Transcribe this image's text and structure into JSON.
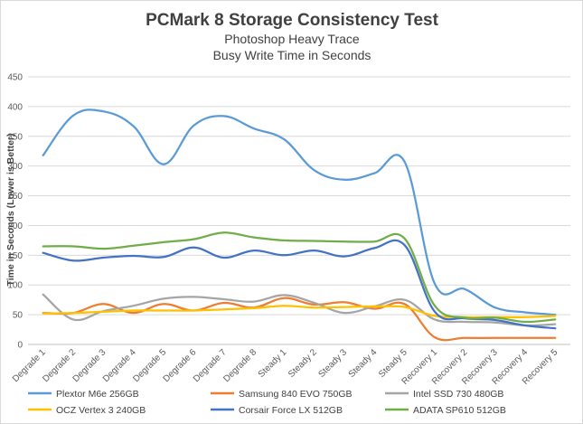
{
  "chart_data": {
    "type": "line",
    "title": "PCMark 8 Storage Consistency Test",
    "subtitle_lines": [
      "Photoshop Heavy Trace",
      "Busy Write Time in Seconds"
    ],
    "xlabel": "",
    "ylabel": "Time in Seconds (Lower is Better)",
    "ylim": [
      0,
      450
    ],
    "yticks": [
      0,
      50,
      100,
      150,
      200,
      250,
      300,
      350,
      400,
      450
    ],
    "grid": true,
    "legend_position": "bottom",
    "categories": [
      "Degrade 1",
      "Degrade 2",
      "Degrade 3",
      "Degrade 4",
      "Degrade 5",
      "Degrade 6",
      "Degrade 7",
      "Degrade 8",
      "Steady 1",
      "Steady 2",
      "Steady 3",
      "Steady 4",
      "Steady 5",
      "Recovery 1",
      "Recovery 2",
      "Recovery 3",
      "Recovery 4",
      "Recovery 5"
    ],
    "series": [
      {
        "name": "Plextor M6e 256GB",
        "color": "#5b9bd5",
        "values": [
          318,
          385,
          392,
          367,
          303,
          368,
          384,
          363,
          345,
          293,
          277,
          288,
          307,
          102,
          93,
          62,
          54,
          50
        ]
      },
      {
        "name": "Samsung 840 EVO 750GB",
        "color": "#ed7d31",
        "values": [
          53,
          53,
          68,
          53,
          68,
          57,
          70,
          62,
          78,
          67,
          71,
          60,
          68,
          12,
          11,
          11,
          11,
          11
        ]
      },
      {
        "name": "Intel SSD 730 480GB",
        "color": "#a5a5a5",
        "values": [
          84,
          42,
          56,
          65,
          77,
          80,
          76,
          72,
          83,
          70,
          53,
          64,
          75,
          42,
          38,
          37,
          32,
          34
        ]
      },
      {
        "name": "OCZ Vertex 3 240GB",
        "color": "#ffc000",
        "values": [
          52,
          53,
          55,
          57,
          57,
          57,
          59,
          61,
          65,
          62,
          63,
          64,
          63,
          48,
          46,
          46,
          46,
          48
        ]
      },
      {
        "name": "Corsair Force LX 512GB",
        "color": "#4472c4",
        "values": [
          154,
          141,
          146,
          149,
          147,
          163,
          146,
          158,
          150,
          158,
          148,
          162,
          167,
          55,
          44,
          41,
          32,
          27
        ]
      },
      {
        "name": "ADATA SP610 512GB",
        "color": "#70ad47",
        "values": [
          165,
          165,
          161,
          166,
          172,
          177,
          188,
          180,
          175,
          174,
          173,
          173,
          178,
          65,
          45,
          45,
          38,
          42
        ]
      }
    ]
  }
}
